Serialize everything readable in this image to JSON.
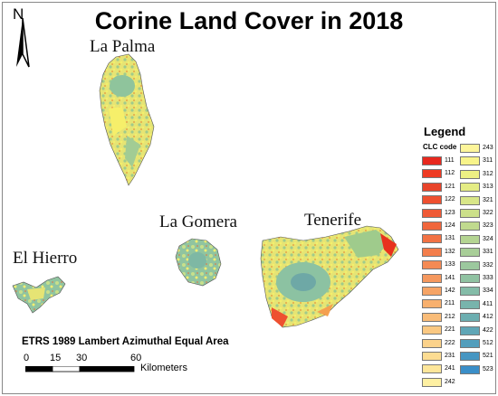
{
  "title": "Corine Land Cover in 2018",
  "north_label": "N",
  "islands": {
    "la_palma": "La Palma",
    "la_gomera": "La Gomera",
    "el_hierro": "El Hierro",
    "tenerife": "Tenerife"
  },
  "projection": "ETRS 1989 Lambert Azimuthal Equal Area",
  "scale": {
    "ticks": [
      "0",
      "15",
      "30",
      "60"
    ],
    "unit": "Kilometers"
  },
  "legend": {
    "title": "Legend",
    "subtitle": "CLC code",
    "col1": [
      {
        "code": "111",
        "color": "#e8281e"
      },
      {
        "code": "112",
        "color": "#ee3a22"
      },
      {
        "code": "121",
        "color": "#e8442a"
      },
      {
        "code": "122",
        "color": "#ee5030"
      },
      {
        "code": "123",
        "color": "#ef5a36"
      },
      {
        "code": "124",
        "color": "#f0663c"
      },
      {
        "code": "131",
        "color": "#f27244"
      },
      {
        "code": "132",
        "color": "#f37e4c"
      },
      {
        "code": "133",
        "color": "#f48a54"
      },
      {
        "code": "141",
        "color": "#f5985e"
      },
      {
        "code": "142",
        "color": "#f6a466"
      },
      {
        "code": "211",
        "color": "#f8b06e"
      },
      {
        "code": "212",
        "color": "#f9bc78"
      },
      {
        "code": "221",
        "color": "#fac882"
      },
      {
        "code": "222",
        "color": "#fbd28a"
      },
      {
        "code": "231",
        "color": "#fcdc92"
      },
      {
        "code": "241",
        "color": "#fde69a"
      },
      {
        "code": "242",
        "color": "#fef0a2"
      }
    ],
    "col2": [
      {
        "code": "243",
        "color": "#fdf59a"
      },
      {
        "code": "311",
        "color": "#f8f48a"
      },
      {
        "code": "312",
        "color": "#eef084"
      },
      {
        "code": "313",
        "color": "#e4ec84"
      },
      {
        "code": "321",
        "color": "#d8e688"
      },
      {
        "code": "322",
        "color": "#cce08a"
      },
      {
        "code": "323",
        "color": "#c0da8e"
      },
      {
        "code": "324",
        "color": "#b4d492"
      },
      {
        "code": "331",
        "color": "#a8ce98"
      },
      {
        "code": "332",
        "color": "#9cc89e"
      },
      {
        "code": "333",
        "color": "#90c2a2"
      },
      {
        "code": "334",
        "color": "#84bca8"
      },
      {
        "code": "411",
        "color": "#78b4ac"
      },
      {
        "code": "412",
        "color": "#6caeb0"
      },
      {
        "code": "422",
        "color": "#60a6b6"
      },
      {
        "code": "512",
        "color": "#529ebc"
      },
      {
        "code": "521",
        "color": "#4696c2"
      },
      {
        "code": "523",
        "color": "#3a8ec8"
      }
    ]
  }
}
